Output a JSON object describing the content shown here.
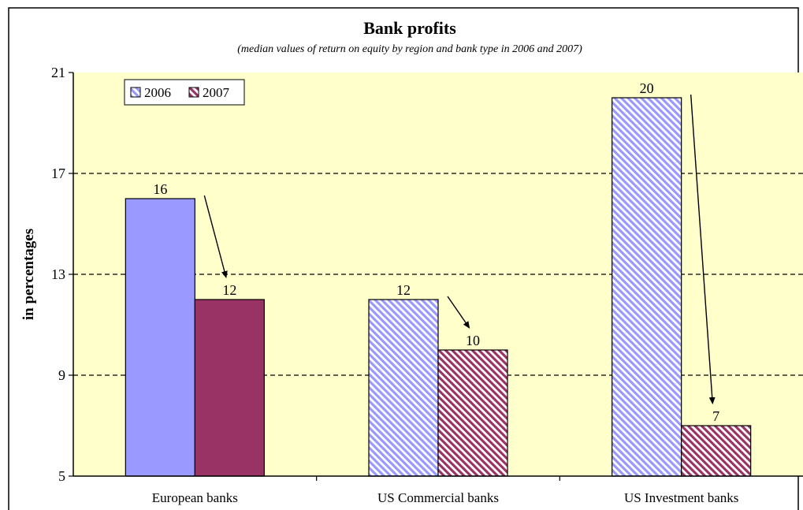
{
  "chart_data": {
    "type": "bar",
    "title": "Bank profits",
    "subtitle": "(median values of return on equity by region and bank type in 2006 and 2007)",
    "ylabel": "in percentages",
    "xlabel": "",
    "categories": [
      "European banks",
      "US Commercial banks",
      "US Investment banks"
    ],
    "series": [
      {
        "name": "2006",
        "values": [
          16,
          12,
          20
        ],
        "color": "#9999ff"
      },
      {
        "name": "2007",
        "values": [
          12,
          10,
          7
        ],
        "color": "#993366"
      }
    ],
    "data_labels": [
      [
        "16",
        "12"
      ],
      [
        "12",
        "10"
      ],
      [
        "20",
        "7"
      ]
    ],
    "ylim": [
      5,
      21
    ],
    "yticks": [
      5,
      9,
      13,
      17,
      21
    ],
    "grid": "horizontal dashed",
    "legend_position": "top-left",
    "plot_background": "#ffffcc",
    "bar_fill_style": [
      "solid",
      "hatched",
      "hatched"
    ],
    "arrows": "from 2006 bar to 2007 bar in each category"
  }
}
